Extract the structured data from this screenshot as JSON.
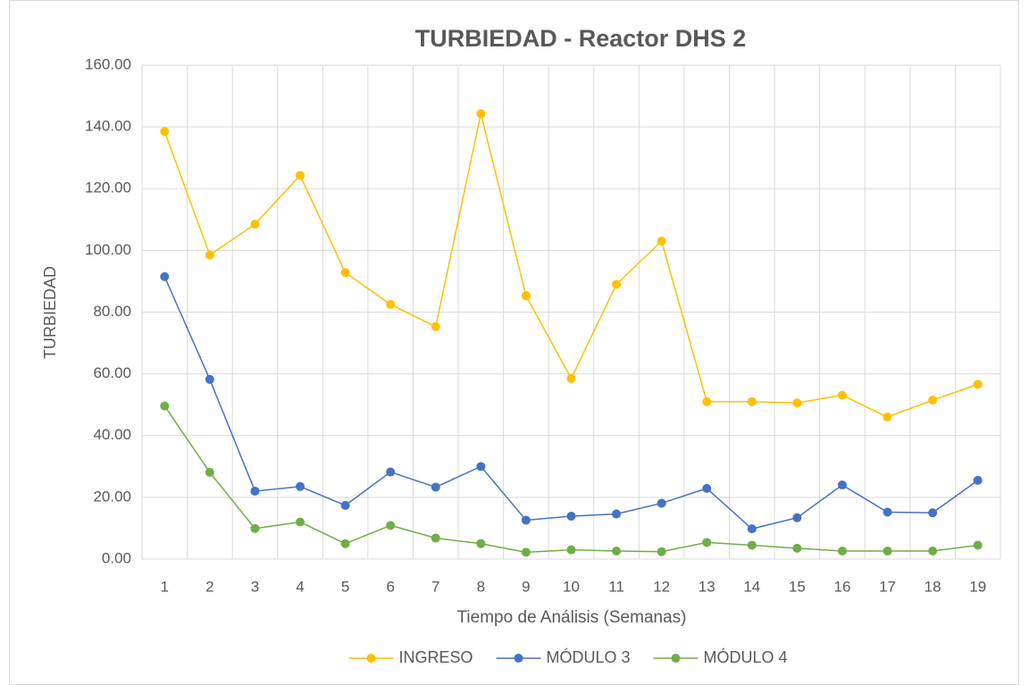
{
  "chart_data": {
    "type": "line",
    "title": "TURBIEDAD -  Reactor DHS 2",
    "x_label": "Tiempo de Análisis (Semanas)",
    "y_label": "TURBIEDAD",
    "categories": [
      "1",
      "2",
      "3",
      "4",
      "5",
      "6",
      "7",
      "8",
      "9",
      "10",
      "11",
      "12",
      "13",
      "14",
      "15",
      "16",
      "17",
      "18",
      "19"
    ],
    "series": [
      {
        "name": "INGRESO",
        "color": "#FFC000",
        "values": [
          138.5,
          98.5,
          108.5,
          124.3,
          92.8,
          82.5,
          75.3,
          144.3,
          85.3,
          58.5,
          89,
          103,
          51,
          51,
          50.6,
          53.1,
          46,
          51.5,
          56.6
        ]
      },
      {
        "name": "MÓDULO 3",
        "color": "#4472C4",
        "values": [
          91.5,
          58.2,
          22,
          23.5,
          17.4,
          28.2,
          23.3,
          30,
          12.6,
          13.9,
          14.6,
          18.1,
          22.9,
          9.8,
          13.4,
          24,
          15.2,
          15,
          25.5
        ]
      },
      {
        "name": "MÓDULO 4",
        "color": "#70AD47",
        "values": [
          49.6,
          28.1,
          9.9,
          12,
          5,
          10.9,
          6.8,
          5,
          2.2,
          3,
          2.6,
          2.4,
          5.4,
          4.5,
          3.5,
          2.6,
          2.6,
          2.6,
          4.5
        ]
      }
    ],
    "ylim": [
      0,
      160
    ],
    "yticks": [
      {
        "value": 0,
        "label": "0.00"
      },
      {
        "value": 20,
        "label": "20.00"
      },
      {
        "value": 40,
        "label": "40.00"
      },
      {
        "value": 60,
        "label": "60.00"
      },
      {
        "value": 80,
        "label": "80.00"
      },
      {
        "value": 100,
        "label": "100.00"
      },
      {
        "value": 120,
        "label": "120.00"
      },
      {
        "value": 140,
        "label": "140.00"
      },
      {
        "value": 160,
        "label": "160.00"
      }
    ],
    "grid": true,
    "legend": "bottom"
  }
}
